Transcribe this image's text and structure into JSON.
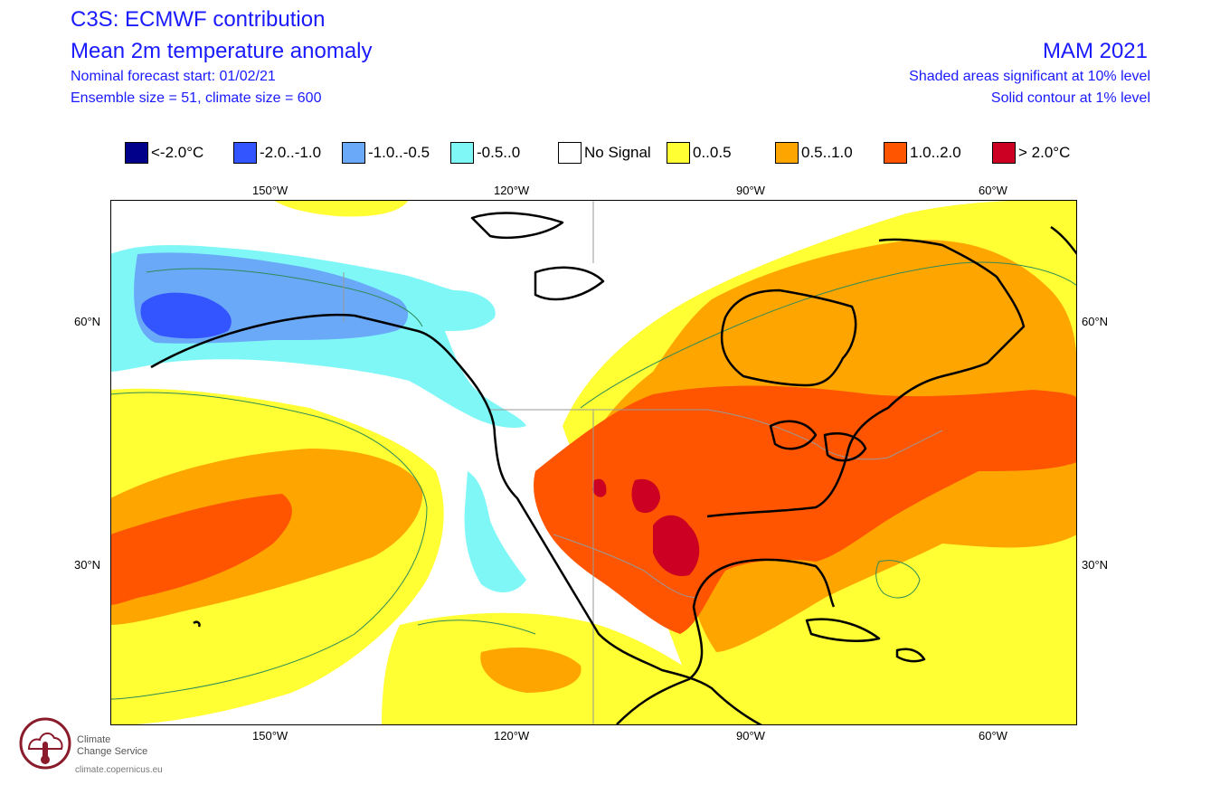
{
  "header": {
    "title_line1": "C3S: ECMWF contribution",
    "title_line2": "Mean 2m temperature anomaly",
    "forecast_start": "Nominal forecast start: 01/02/21",
    "ensemble": "Ensemble size = 51, climate size = 600",
    "season": "MAM 2021",
    "significance_shaded": "Shaded areas significant at 10% level",
    "significance_contour": "Solid contour at 1% level"
  },
  "legend": [
    {
      "label": "<-2.0°C",
      "color": "#00008b"
    },
    {
      "label": "-2.0..-1.0",
      "color": "#3355ff"
    },
    {
      "label": "-1.0..-0.5",
      "color": "#6aa8f8"
    },
    {
      "label": "-0.5..0",
      "color": "#7ff7f7"
    },
    {
      "label": "No Signal",
      "color": "#ffffff"
    },
    {
      "label": "0..0.5",
      "color": "#ffff33"
    },
    {
      "label": "0.5..1.0",
      "color": "#ffa500"
    },
    {
      "label": "1.0..2.0",
      "color": "#ff5500"
    },
    {
      "label": "> 2.0°C",
      "color": "#cc0022"
    }
  ],
  "axes": {
    "lon_top": [
      "150°W",
      "120°W",
      "90°W",
      "60°W"
    ],
    "lon_bottom": [
      "150°W",
      "120°W",
      "90°W",
      "60°W"
    ],
    "lat_left": [
      "60°N",
      "30°N"
    ],
    "lat_right": [
      "60°N",
      "30°N"
    ]
  },
  "logo": {
    "name_line1": "Climate",
    "name_line2": "Change Service",
    "url": "climate.copernicus.eu"
  },
  "colors": {
    "text_blue": "#1a1aff",
    "coastline": "#000000",
    "contour": "#2e8b57",
    "border": "#999999"
  }
}
